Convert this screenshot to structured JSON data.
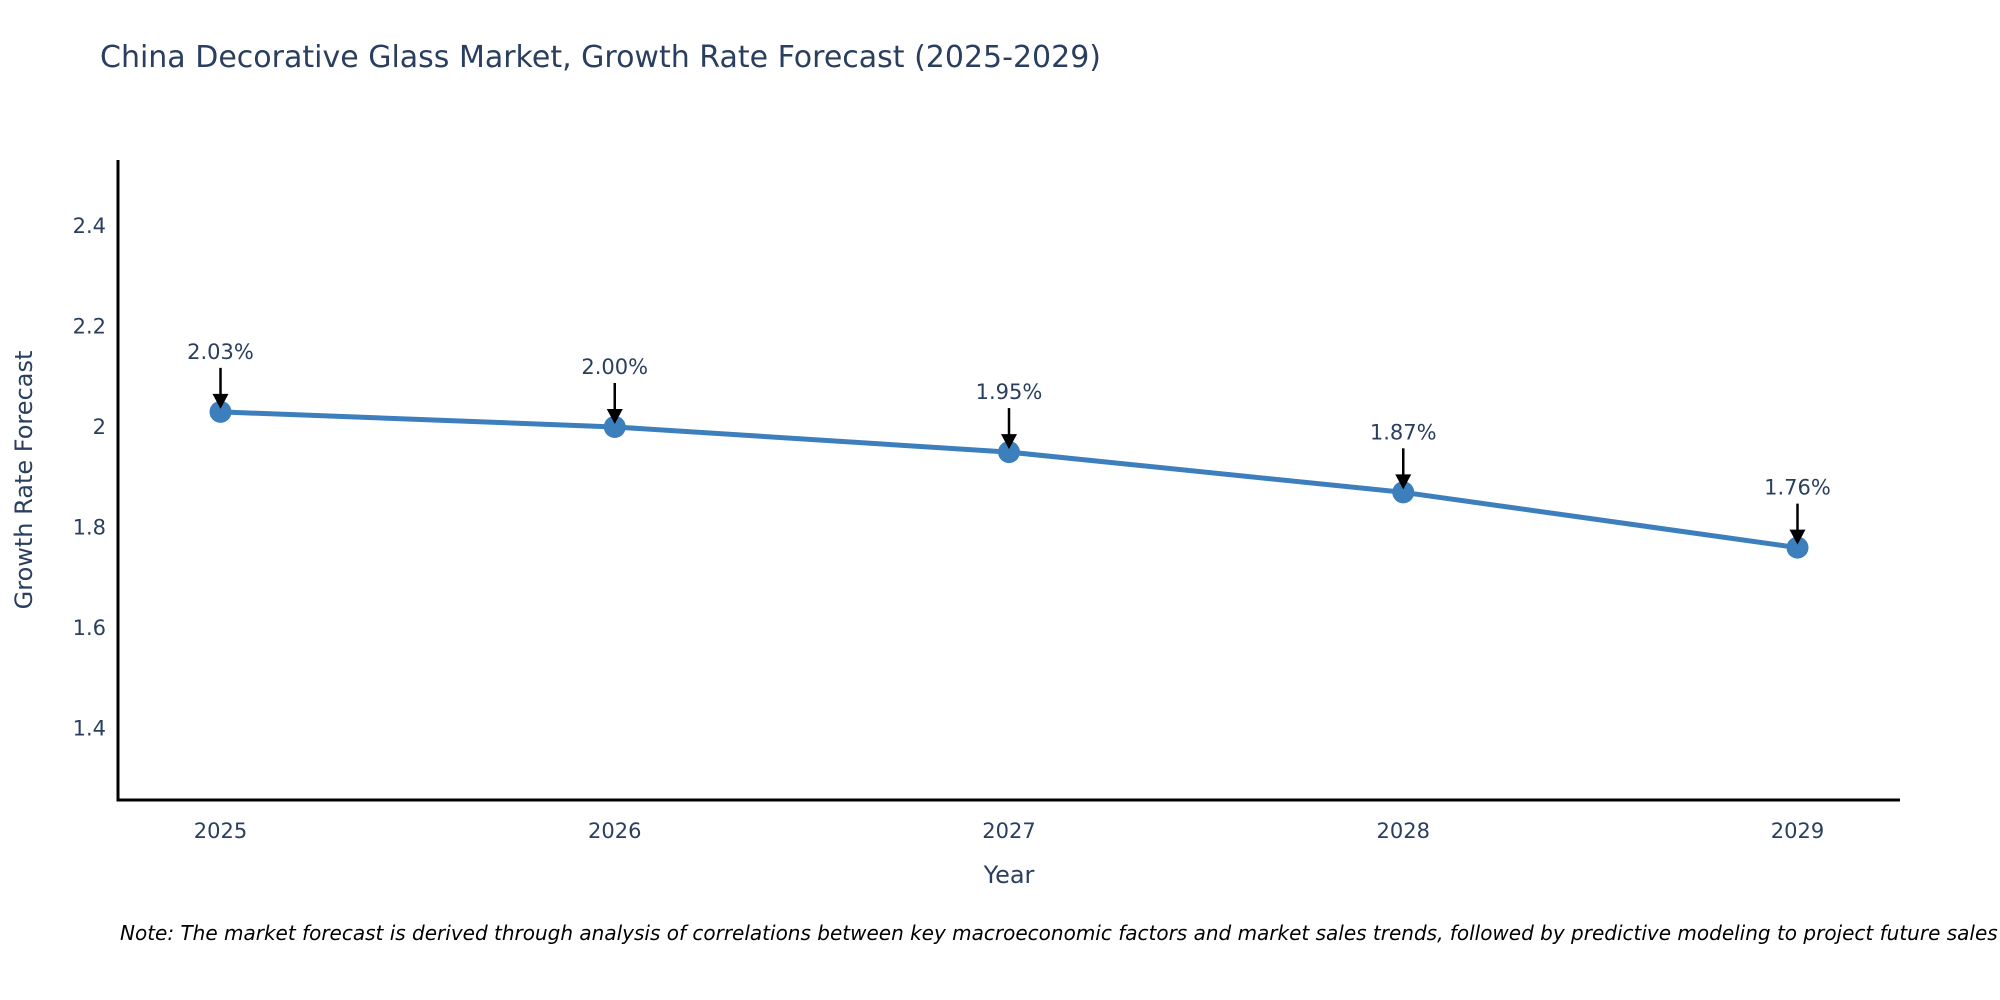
{
  "header": {
    "title": "China Decorative Glass Market, Growth Rate Forecast (2025-2029)"
  },
  "chart_data": {
    "type": "line",
    "title": "China Decorative Glass Market, Growth Rate Forecast (2025-2029)",
    "x": [
      2025,
      2026,
      2027,
      2028,
      2029
    ],
    "values": [
      2.03,
      2.0,
      1.95,
      1.87,
      1.76
    ],
    "point_labels": [
      "2.03%",
      "2.00%",
      "1.95%",
      "1.87%",
      "1.76%"
    ],
    "xlabel": "Year",
    "ylabel": "Growth Rate Forecast",
    "xticks": [
      2025,
      2026,
      2027,
      2028,
      2029
    ],
    "xtick_labels": [
      "2025",
      "2026",
      "2027",
      "2028",
      "2029"
    ],
    "yticks": [
      1.4,
      1.6,
      1.8,
      2.0,
      2.2,
      2.4
    ],
    "ytick_labels": [
      "1.4",
      "1.6",
      "1.8",
      "2",
      "2.2",
      "2.4"
    ],
    "xlim": [
      2024.74,
      2029.26
    ],
    "ylim": [
      1.258,
      2.531
    ],
    "grid": false,
    "legend_position": "none",
    "line_color": "#3d7ebd",
    "marker_color": "#3d7ebd",
    "axis_color": "#000000",
    "text_color": "#2a3f5f",
    "annotation_arrow_color": "#000000"
  },
  "footer": {
    "note": "Note: The market forecast is derived through analysis of correlations between key macroeconomic factors and market sales trends, followed by predictive modeling to project future sales"
  }
}
